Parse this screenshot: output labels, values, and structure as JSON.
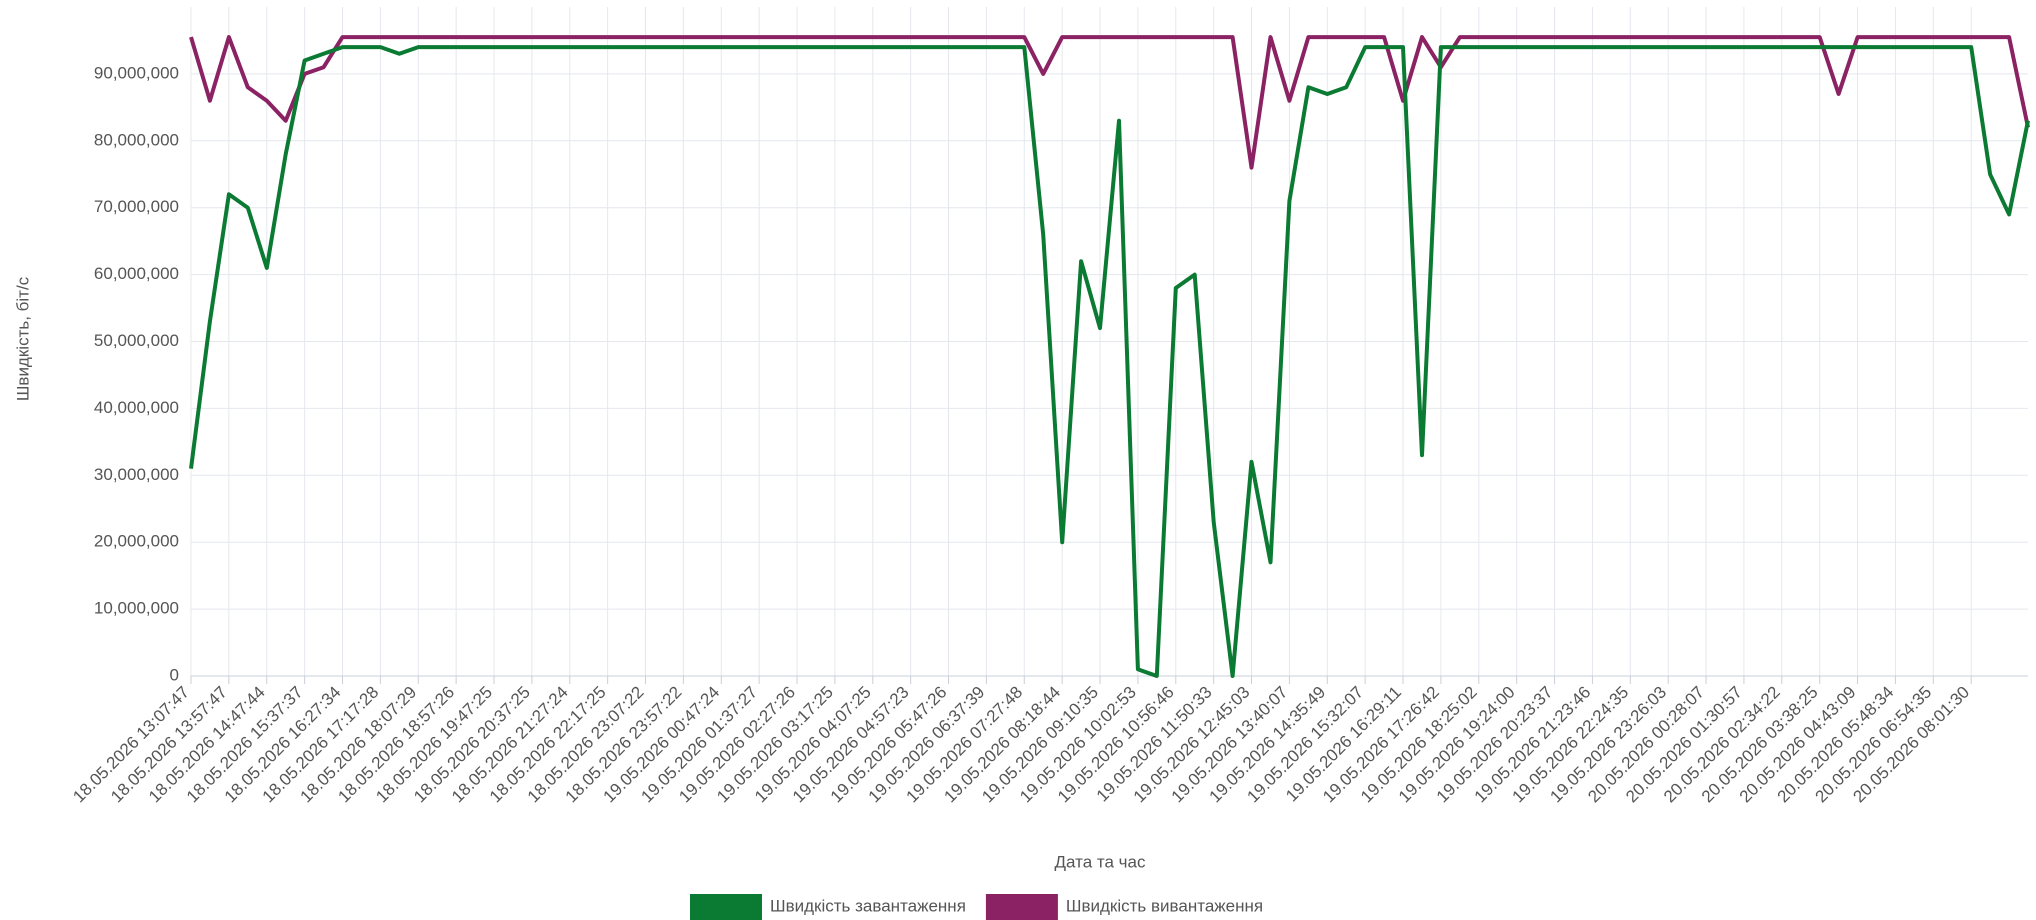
{
  "chart_data": {
    "type": "line",
    "x_label": "Дата та час",
    "y_label": "Швидкість, біт/с",
    "categories": [
      "18.05.2026 13:07:47",
      null,
      "18.05.2026 13:57:47",
      null,
      "18.05.2026 14:47:44",
      null,
      "18.05.2026 15:37:37",
      null,
      "18.05.2026 16:27:34",
      null,
      "18.05.2026 17:17:28",
      null,
      "18.05.2026 18:07:29",
      null,
      "18.05.2026 18:57:26",
      null,
      "18.05.2026 19:47:25",
      null,
      "18.05.2026 20:37:25",
      null,
      "18.05.2026 21:27:24",
      null,
      "18.05.2026 22:17:25",
      null,
      "18.05.2026 23:07:22",
      null,
      "18.05.2026 23:57:22",
      null,
      "19.05.2026 00:47:24",
      null,
      "19.05.2026 01:37:27",
      null,
      "19.05.2026 02:27:26",
      null,
      "19.05.2026 03:17:25",
      null,
      "19.05.2026 04:07:25",
      null,
      "19.05.2026 04:57:23",
      null,
      "19.05.2026 05:47:26",
      null,
      "19.05.2026 06:37:39",
      null,
      "19.05.2026 07:27:48",
      null,
      "19.05.2026 08:18:44",
      null,
      "19.05.2026 09:10:35",
      null,
      "19.05.2026 10:02:53",
      null,
      "19.05.2026 10:56:46",
      null,
      "19.05.2026 11:50:33",
      null,
      "19.05.2026 12:45:03",
      null,
      "19.05.2026 13:40:07",
      null,
      "19.05.2026 14:35:49",
      null,
      "19.05.2026 15:32:07",
      null,
      "19.05.2026 16:29:11",
      null,
      "19.05.2026 17:26:42",
      null,
      "19.05.2026 18:25:02",
      null,
      "19.05.2026 19:24:00",
      null,
      "19.05.2026 20:23:37",
      null,
      "19.05.2026 21:23:46",
      null,
      "19.05.2026 22:24:35",
      null,
      "19.05.2026 23:26:03",
      null,
      "20.05.2026 00:28:07",
      null,
      "20.05.2026 01:30:57",
      null,
      "20.05.2026 02:34:22",
      null,
      "20.05.2026 03:38:25",
      null,
      "20.05.2026 04:43:09",
      null,
      "20.05.2026 05:48:34",
      null,
      "20.05.2026 06:54:35",
      null,
      "20.05.2026 08:01:30",
      null,
      null,
      null
    ],
    "series": [
      {
        "name": "Швидкість завантаження",
        "color": "#0b7a33",
        "values": [
          31000000,
          53000000,
          72000000,
          70000000,
          61000000,
          78000000,
          92000000,
          93000000,
          94000000,
          94000000,
          94000000,
          93000000,
          94000000,
          94000000,
          94000000,
          94000000,
          94000000,
          94000000,
          94000000,
          94000000,
          94000000,
          94000000,
          94000000,
          94000000,
          94000000,
          94000000,
          94000000,
          94000000,
          94000000,
          94000000,
          94000000,
          94000000,
          94000000,
          94000000,
          94000000,
          94000000,
          94000000,
          94000000,
          94000000,
          94000000,
          94000000,
          94000000,
          94000000,
          94000000,
          94000000,
          66000000,
          20000000,
          62000000,
          52000000,
          83000000,
          1000000,
          0,
          58000000,
          60000000,
          23000000,
          0,
          32000000,
          17000000,
          71000000,
          88000000,
          87000000,
          88000000,
          94000000,
          94000000,
          94000000,
          33000000,
          94000000,
          94000000,
          94000000,
          94000000,
          94000000,
          94000000,
          94000000,
          94000000,
          94000000,
          94000000,
          94000000,
          94000000,
          94000000,
          94000000,
          94000000,
          94000000,
          94000000,
          94000000,
          94000000,
          94000000,
          94000000,
          94000000,
          94000000,
          94000000,
          94000000,
          94000000,
          94000000,
          94000000,
          94000000,
          75000000,
          69000000,
          83000000
        ]
      },
      {
        "name": "Швидкість вивантаження",
        "color": "#8b2263",
        "values": [
          95500000,
          86000000,
          95500000,
          88000000,
          86000000,
          83000000,
          90000000,
          91000000,
          95500000,
          95500000,
          95500000,
          95500000,
          95500000,
          95500000,
          95500000,
          95500000,
          95500000,
          95500000,
          95500000,
          95500000,
          95500000,
          95500000,
          95500000,
          95500000,
          95500000,
          95500000,
          95500000,
          95500000,
          95500000,
          95500000,
          95500000,
          95500000,
          95500000,
          95500000,
          95500000,
          95500000,
          95500000,
          95500000,
          95500000,
          95500000,
          95500000,
          95500000,
          95500000,
          95500000,
          95500000,
          90000000,
          95500000,
          95500000,
          95500000,
          95500000,
          95500000,
          95500000,
          95500000,
          95500000,
          95500000,
          95500000,
          76000000,
          95500000,
          86000000,
          95500000,
          95500000,
          95500000,
          95500000,
          95500000,
          86000000,
          95500000,
          91000000,
          95500000,
          95500000,
          95500000,
          95500000,
          95500000,
          95500000,
          95500000,
          95500000,
          95500000,
          95500000,
          95500000,
          95500000,
          95500000,
          95500000,
          95500000,
          95500000,
          95500000,
          95500000,
          95500000,
          95500000,
          87000000,
          95500000,
          95500000,
          95500000,
          95500000,
          95500000,
          95500000,
          95500000,
          95500000,
          95500000,
          82000000
        ]
      }
    ],
    "ylim": [
      0,
      100000000
    ],
    "yticks": [
      0,
      {
        "value": 10000000,
        "label": "10,000,000"
      },
      {
        "value": 20000000,
        "label": "20,000,000"
      },
      {
        "value": 30000000,
        "label": "30,000,000"
      },
      {
        "value": 40000000,
        "label": "40,000,000"
      },
      {
        "value": 50000000,
        "label": "50,000,000"
      },
      {
        "value": 60000000,
        "label": "60,000,000"
      },
      {
        "value": 70000000,
        "label": "70,000,000"
      },
      {
        "value": 80000000,
        "label": "80,000,000"
      },
      {
        "value": 90000000,
        "label": "90,000,000"
      }
    ],
    "grid": true,
    "legend": "bottom"
  }
}
